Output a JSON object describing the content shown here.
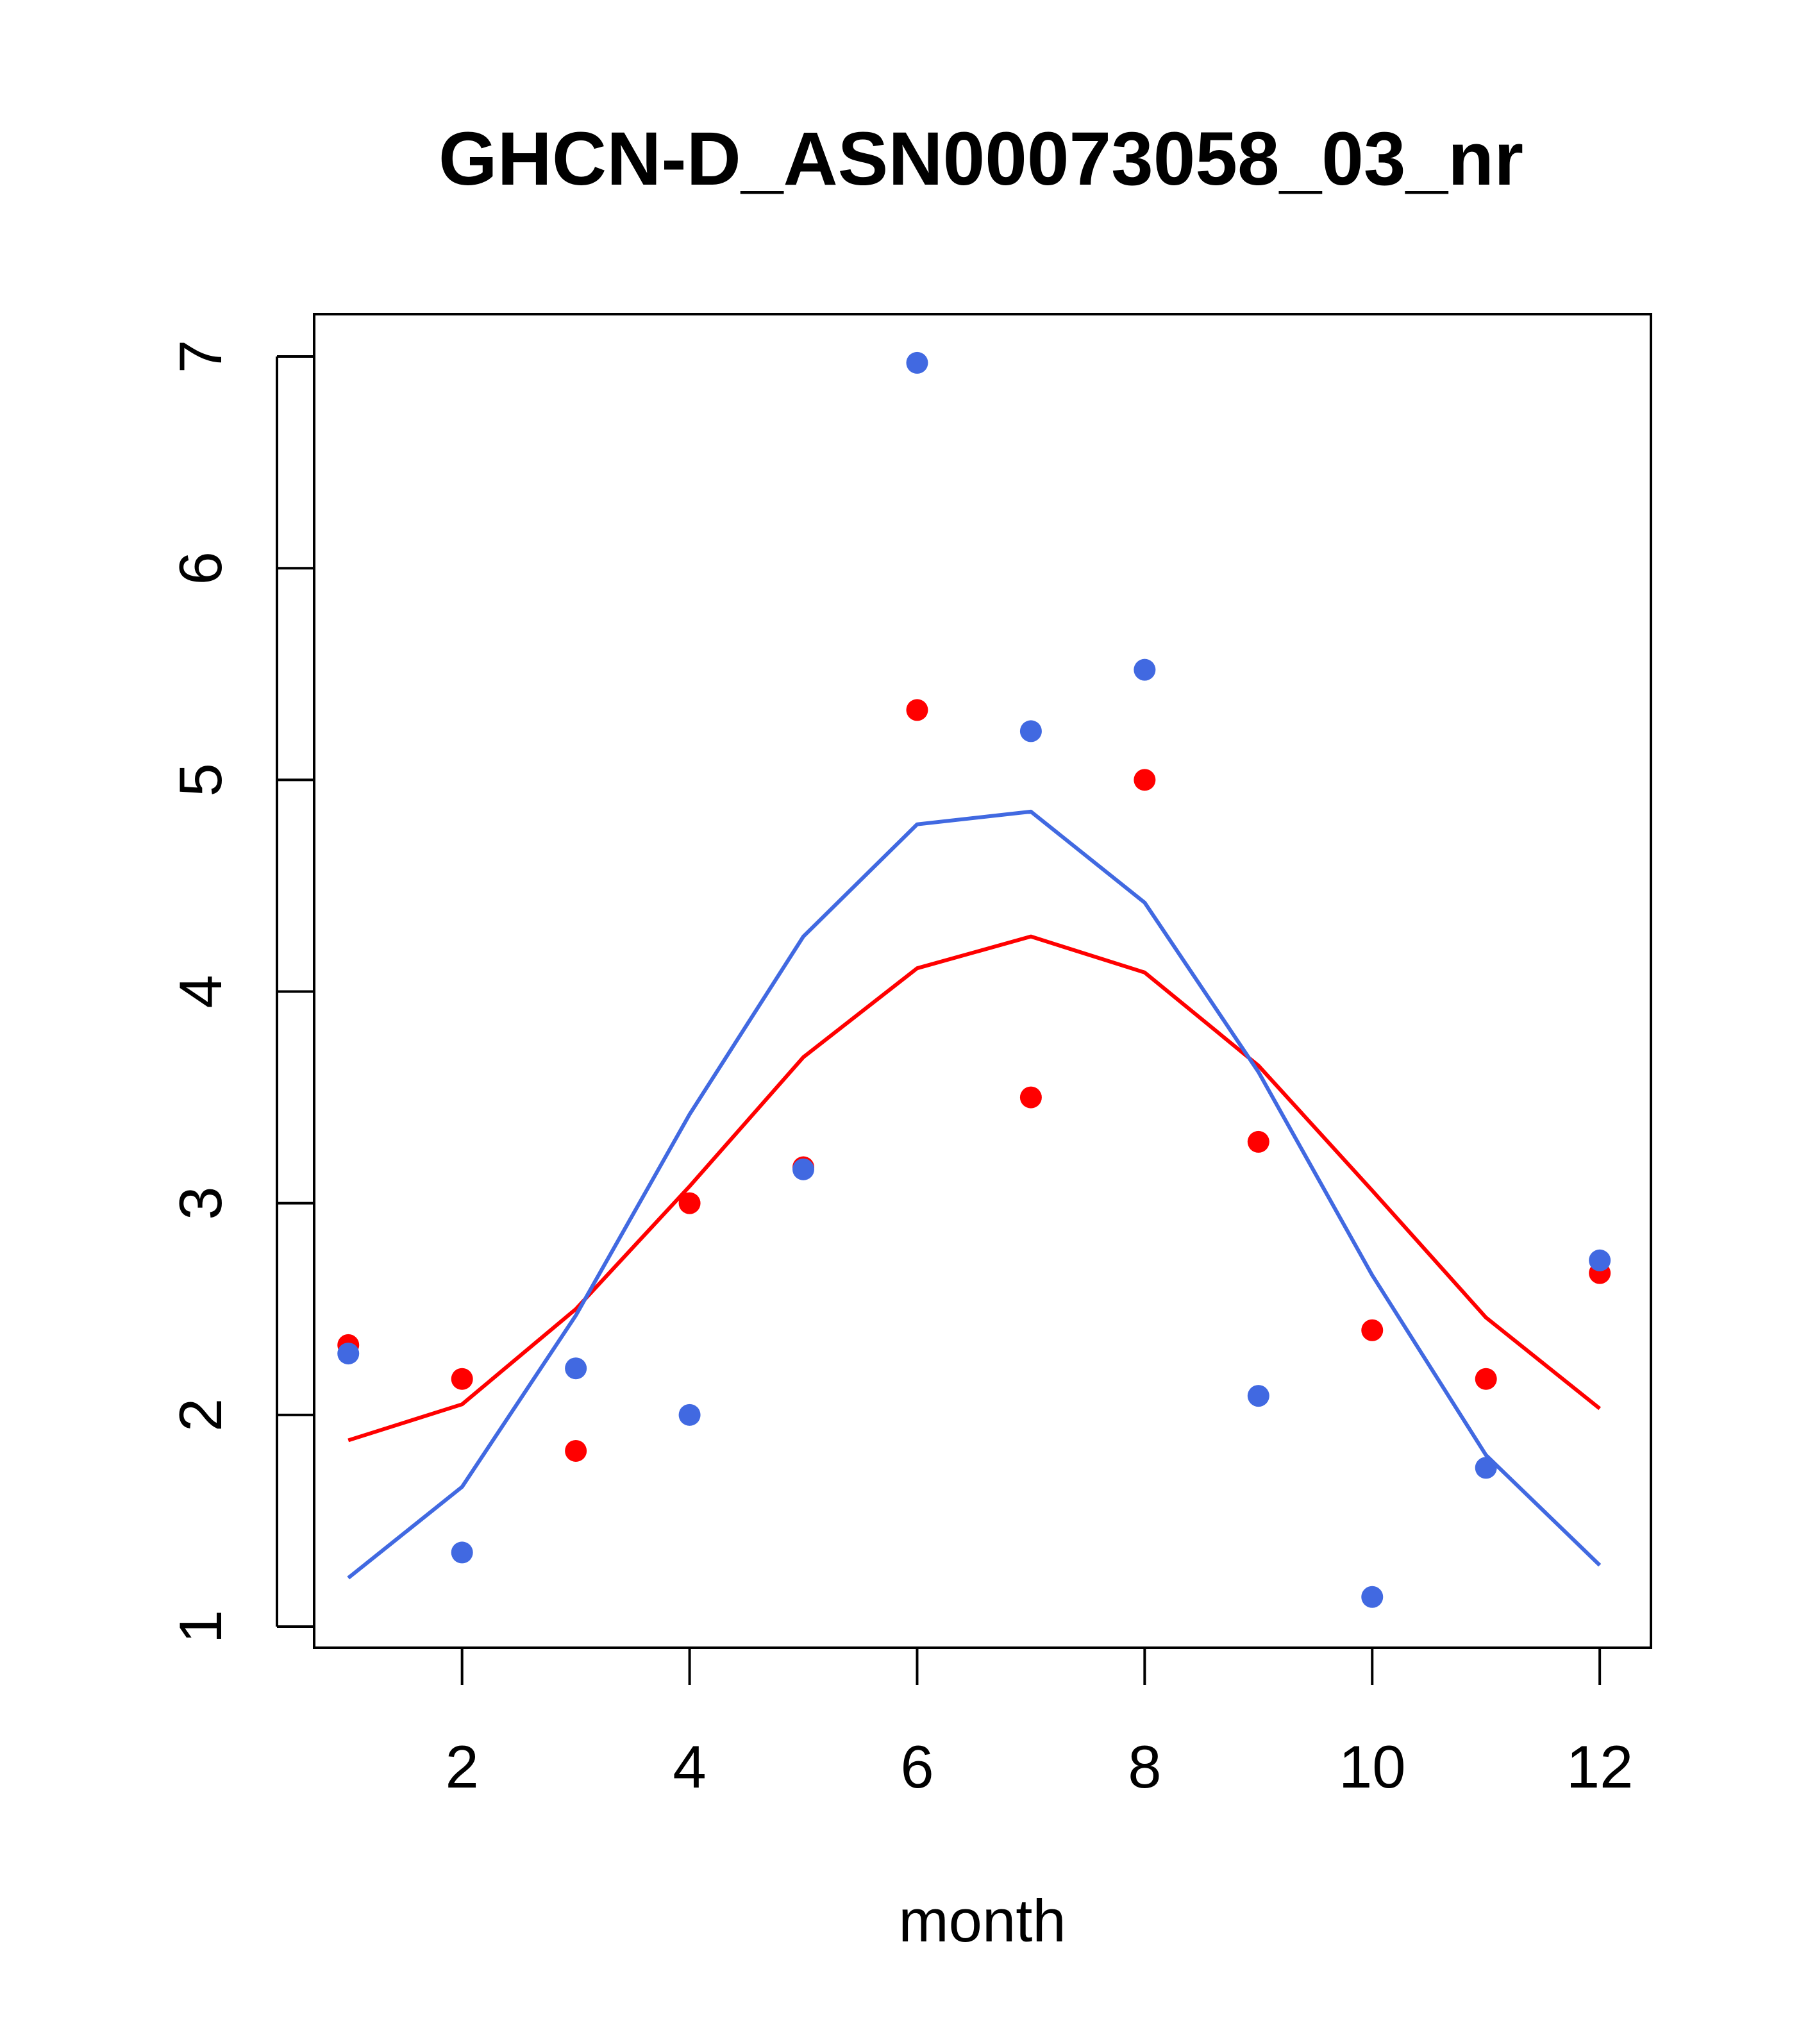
{
  "chart_data": {
    "type": "line",
    "title": "GHCN-D_ASN00073058_03_nr",
    "xlabel": "month",
    "ylabel": "",
    "xlim": [
      0.7,
      12.45
    ],
    "ylim": [
      0.9,
      7.2
    ],
    "x": [
      1,
      2,
      3,
      4,
      5,
      6,
      7,
      8,
      9,
      10,
      11,
      12
    ],
    "xticks": [
      2,
      4,
      6,
      8,
      10,
      12
    ],
    "yticks": [
      1,
      2,
      3,
      4,
      5,
      6,
      7
    ],
    "grid": false,
    "series": [
      {
        "kind": "points",
        "color": "#ff0000",
        "values": [
          2.33,
          2.17,
          1.83,
          3.0,
          3.17,
          5.33,
          3.5,
          5.0,
          3.29,
          2.4,
          2.17,
          2.67
        ]
      },
      {
        "kind": "line",
        "color": "#ff0000",
        "values": [
          1.88,
          2.05,
          2.5,
          3.08,
          3.69,
          4.11,
          4.26,
          4.09,
          3.65,
          3.06,
          2.46,
          2.03
        ]
      },
      {
        "kind": "points",
        "color": "#4169e1",
        "values": [
          2.29,
          1.35,
          2.22,
          2.0,
          3.16,
          6.97,
          5.23,
          5.52,
          2.09,
          1.14,
          1.75,
          2.73
        ]
      },
      {
        "kind": "line",
        "color": "#4169e1",
        "values": [
          1.23,
          1.66,
          2.47,
          3.42,
          4.26,
          4.79,
          4.85,
          4.42,
          3.62,
          2.66,
          1.81,
          1.29
        ]
      }
    ]
  }
}
